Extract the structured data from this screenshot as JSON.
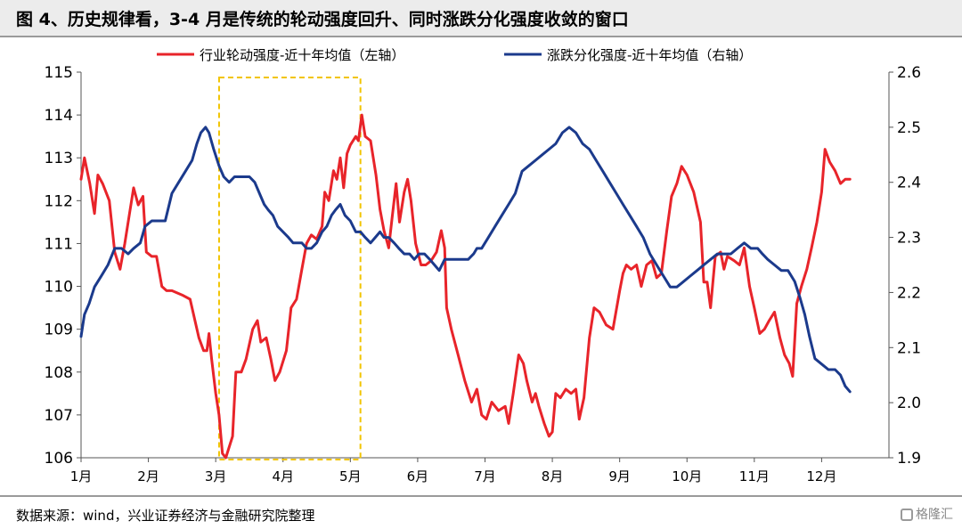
{
  "title": "图 4、历史规律看，3-4 月是传统的轮动强度回升、同时涨跌分化强度收敛的窗口",
  "source": "数据来源：wind，兴业证券经济与金融研究院整理",
  "watermark": "格隆汇",
  "colors": {
    "left_series": "#e8242a",
    "right_series": "#1b3a8c",
    "highlight": "#f2c400"
  },
  "chart_data": {
    "type": "line",
    "x_labels": [
      "1月",
      "2月",
      "3月",
      "4月",
      "5月",
      "6月",
      "7月",
      "8月",
      "9月",
      "10月",
      "11月",
      "12月"
    ],
    "y_left": {
      "min": 106,
      "max": 115,
      "ticks": [
        "106",
        "107",
        "108",
        "109",
        "110",
        "111",
        "112",
        "113",
        "114",
        "115"
      ]
    },
    "y_right": {
      "min": 1.9,
      "max": 2.6,
      "ticks": [
        "1.9",
        "2.0",
        "2.1",
        "2.2",
        "2.3",
        "2.4",
        "2.5",
        "2.6"
      ]
    },
    "highlight": {
      "from": 3.05,
      "to": 5.15
    },
    "series": [
      {
        "name": "行业轮动强度-近十年均值（左轴）",
        "axis": "left",
        "points": [
          [
            1.0,
            112.5
          ],
          [
            1.05,
            113.0
          ],
          [
            1.13,
            112.4
          ],
          [
            1.2,
            111.7
          ],
          [
            1.25,
            112.6
          ],
          [
            1.32,
            112.4
          ],
          [
            1.42,
            112.0
          ],
          [
            1.5,
            110.8
          ],
          [
            1.58,
            110.4
          ],
          [
            1.65,
            111.0
          ],
          [
            1.72,
            111.7
          ],
          [
            1.78,
            112.3
          ],
          [
            1.85,
            111.9
          ],
          [
            1.92,
            112.1
          ],
          [
            1.97,
            110.8
          ],
          [
            2.05,
            110.7
          ],
          [
            2.12,
            110.7
          ],
          [
            2.2,
            110.0
          ],
          [
            2.27,
            109.9
          ],
          [
            2.35,
            109.9
          ],
          [
            2.5,
            109.8
          ],
          [
            2.62,
            109.7
          ],
          [
            2.75,
            108.8
          ],
          [
            2.82,
            108.5
          ],
          [
            2.87,
            108.5
          ],
          [
            2.9,
            108.9
          ],
          [
            2.94,
            108.3
          ],
          [
            3.0,
            107.5
          ],
          [
            3.05,
            107.0
          ],
          [
            3.1,
            106.1
          ],
          [
            3.15,
            106.0
          ],
          [
            3.25,
            106.5
          ],
          [
            3.3,
            108.0
          ],
          [
            3.38,
            108.0
          ],
          [
            3.45,
            108.3
          ],
          [
            3.55,
            109.0
          ],
          [
            3.62,
            109.2
          ],
          [
            3.67,
            108.7
          ],
          [
            3.75,
            108.8
          ],
          [
            3.82,
            108.3
          ],
          [
            3.88,
            107.8
          ],
          [
            3.95,
            108.0
          ],
          [
            4.05,
            108.5
          ],
          [
            4.12,
            109.5
          ],
          [
            4.2,
            109.7
          ],
          [
            4.28,
            110.4
          ],
          [
            4.35,
            111.0
          ],
          [
            4.42,
            111.2
          ],
          [
            4.5,
            111.1
          ],
          [
            4.58,
            111.4
          ],
          [
            4.62,
            112.2
          ],
          [
            4.68,
            112.0
          ],
          [
            4.75,
            112.7
          ],
          [
            4.8,
            112.5
          ],
          [
            4.85,
            113.0
          ],
          [
            4.9,
            112.3
          ],
          [
            4.95,
            113.1
          ],
          [
            5.0,
            113.3
          ],
          [
            5.08,
            113.5
          ],
          [
            5.12,
            113.4
          ],
          [
            5.17,
            114.0
          ],
          [
            5.22,
            113.5
          ],
          [
            5.3,
            113.4
          ],
          [
            5.38,
            112.6
          ],
          [
            5.44,
            111.8
          ],
          [
            5.5,
            111.3
          ],
          [
            5.57,
            110.9
          ],
          [
            5.62,
            111.6
          ],
          [
            5.68,
            112.4
          ],
          [
            5.73,
            111.5
          ],
          [
            5.8,
            112.2
          ],
          [
            5.85,
            112.5
          ],
          [
            5.9,
            112.0
          ],
          [
            5.97,
            111.0
          ],
          [
            6.05,
            110.5
          ],
          [
            6.12,
            110.5
          ],
          [
            6.2,
            110.6
          ],
          [
            6.28,
            110.8
          ],
          [
            6.35,
            111.3
          ],
          [
            6.4,
            110.9
          ],
          [
            6.43,
            109.5
          ],
          [
            6.5,
            109.0
          ],
          [
            6.6,
            108.4
          ],
          [
            6.7,
            107.8
          ],
          [
            6.8,
            107.3
          ],
          [
            6.88,
            107.6
          ],
          [
            6.95,
            107.0
          ],
          [
            7.02,
            106.9
          ],
          [
            7.1,
            107.3
          ],
          [
            7.2,
            107.1
          ],
          [
            7.3,
            107.2
          ],
          [
            7.35,
            106.8
          ],
          [
            7.42,
            107.5
          ],
          [
            7.5,
            108.4
          ],
          [
            7.57,
            108.2
          ],
          [
            7.62,
            107.8
          ],
          [
            7.7,
            107.3
          ],
          [
            7.75,
            107.5
          ],
          [
            7.8,
            107.2
          ],
          [
            7.88,
            106.8
          ],
          [
            7.95,
            106.5
          ],
          [
            8.0,
            106.6
          ],
          [
            8.05,
            107.5
          ],
          [
            8.12,
            107.4
          ],
          [
            8.2,
            107.6
          ],
          [
            8.28,
            107.5
          ],
          [
            8.35,
            107.6
          ],
          [
            8.4,
            106.9
          ],
          [
            8.47,
            107.4
          ],
          [
            8.55,
            108.8
          ],
          [
            8.62,
            109.5
          ],
          [
            8.7,
            109.4
          ],
          [
            8.8,
            109.1
          ],
          [
            8.9,
            109.0
          ],
          [
            9.0,
            109.9
          ],
          [
            9.05,
            110.3
          ],
          [
            9.1,
            110.5
          ],
          [
            9.17,
            110.4
          ],
          [
            9.25,
            110.5
          ],
          [
            9.32,
            110.0
          ],
          [
            9.4,
            110.5
          ],
          [
            9.48,
            110.6
          ],
          [
            9.55,
            110.2
          ],
          [
            9.62,
            110.3
          ],
          [
            9.7,
            111.3
          ],
          [
            9.77,
            112.1
          ],
          [
            9.85,
            112.4
          ],
          [
            9.92,
            112.8
          ],
          [
            10.0,
            112.6
          ],
          [
            10.1,
            112.2
          ],
          [
            10.2,
            111.5
          ],
          [
            10.25,
            110.1
          ],
          [
            10.3,
            110.1
          ],
          [
            10.35,
            109.5
          ],
          [
            10.42,
            110.7
          ],
          [
            10.5,
            110.8
          ],
          [
            10.55,
            110.4
          ],
          [
            10.6,
            110.7
          ],
          [
            10.7,
            110.6
          ],
          [
            10.78,
            110.5
          ],
          [
            10.85,
            110.9
          ],
          [
            10.93,
            110.0
          ],
          [
            11.0,
            109.5
          ],
          [
            11.08,
            108.9
          ],
          [
            11.15,
            109.0
          ],
          [
            11.22,
            109.2
          ],
          [
            11.3,
            109.4
          ],
          [
            11.38,
            108.8
          ],
          [
            11.45,
            108.4
          ],
          [
            11.52,
            108.2
          ],
          [
            11.57,
            107.9
          ],
          [
            11.63,
            109.6
          ],
          [
            11.7,
            110.0
          ],
          [
            11.78,
            110.4
          ],
          [
            11.85,
            110.9
          ],
          [
            11.93,
            111.5
          ],
          [
            12.0,
            112.2
          ],
          [
            12.05,
            113.2
          ],
          [
            12.12,
            112.9
          ],
          [
            12.2,
            112.7
          ],
          [
            12.28,
            112.4
          ],
          [
            12.35,
            112.5
          ],
          [
            12.42,
            112.5
          ]
        ]
      },
      {
        "name": "涨跌分化强度-近十年均值（右轴）",
        "axis": "right",
        "points": [
          [
            1.0,
            2.12
          ],
          [
            1.05,
            2.16
          ],
          [
            1.12,
            2.18
          ],
          [
            1.2,
            2.21
          ],
          [
            1.3,
            2.23
          ],
          [
            1.4,
            2.25
          ],
          [
            1.5,
            2.28
          ],
          [
            1.6,
            2.28
          ],
          [
            1.7,
            2.27
          ],
          [
            1.78,
            2.28
          ],
          [
            1.88,
            2.29
          ],
          [
            1.95,
            2.32
          ],
          [
            2.05,
            2.33
          ],
          [
            2.15,
            2.33
          ],
          [
            2.25,
            2.33
          ],
          [
            2.35,
            2.38
          ],
          [
            2.45,
            2.4
          ],
          [
            2.55,
            2.42
          ],
          [
            2.65,
            2.44
          ],
          [
            2.72,
            2.47
          ],
          [
            2.78,
            2.49
          ],
          [
            2.85,
            2.5
          ],
          [
            2.9,
            2.49
          ],
          [
            2.97,
            2.46
          ],
          [
            3.05,
            2.43
          ],
          [
            3.12,
            2.41
          ],
          [
            3.2,
            2.4
          ],
          [
            3.28,
            2.41
          ],
          [
            3.35,
            2.41
          ],
          [
            3.42,
            2.41
          ],
          [
            3.5,
            2.41
          ],
          [
            3.58,
            2.4
          ],
          [
            3.65,
            2.38
          ],
          [
            3.72,
            2.36
          ],
          [
            3.78,
            2.35
          ],
          [
            3.85,
            2.34
          ],
          [
            3.92,
            2.32
          ],
          [
            4.0,
            2.31
          ],
          [
            4.08,
            2.3
          ],
          [
            4.15,
            2.29
          ],
          [
            4.22,
            2.29
          ],
          [
            4.28,
            2.29
          ],
          [
            4.35,
            2.28
          ],
          [
            4.42,
            2.28
          ],
          [
            4.5,
            2.29
          ],
          [
            4.58,
            2.31
          ],
          [
            4.65,
            2.32
          ],
          [
            4.72,
            2.34
          ],
          [
            4.78,
            2.35
          ],
          [
            4.85,
            2.36
          ],
          [
            4.92,
            2.34
          ],
          [
            5.0,
            2.33
          ],
          [
            5.08,
            2.31
          ],
          [
            5.15,
            2.31
          ],
          [
            5.22,
            2.3
          ],
          [
            5.3,
            2.29
          ],
          [
            5.37,
            2.3
          ],
          [
            5.44,
            2.31
          ],
          [
            5.5,
            2.3
          ],
          [
            5.57,
            2.3
          ],
          [
            5.65,
            2.29
          ],
          [
            5.72,
            2.28
          ],
          [
            5.8,
            2.27
          ],
          [
            5.88,
            2.27
          ],
          [
            5.95,
            2.26
          ],
          [
            6.02,
            2.27
          ],
          [
            6.1,
            2.27
          ],
          [
            6.18,
            2.26
          ],
          [
            6.25,
            2.25
          ],
          [
            6.32,
            2.24
          ],
          [
            6.4,
            2.26
          ],
          [
            6.48,
            2.26
          ],
          [
            6.56,
            2.26
          ],
          [
            6.65,
            2.26
          ],
          [
            6.75,
            2.26
          ],
          [
            6.83,
            2.27
          ],
          [
            6.88,
            2.28
          ],
          [
            6.95,
            2.28
          ],
          [
            7.05,
            2.3
          ],
          [
            7.15,
            2.32
          ],
          [
            7.25,
            2.34
          ],
          [
            7.35,
            2.36
          ],
          [
            7.45,
            2.38
          ],
          [
            7.55,
            2.42
          ],
          [
            7.65,
            2.43
          ],
          [
            7.75,
            2.44
          ],
          [
            7.85,
            2.45
          ],
          [
            7.95,
            2.46
          ],
          [
            8.05,
            2.47
          ],
          [
            8.15,
            2.49
          ],
          [
            8.25,
            2.5
          ],
          [
            8.35,
            2.49
          ],
          [
            8.45,
            2.47
          ],
          [
            8.55,
            2.46
          ],
          [
            8.65,
            2.44
          ],
          [
            8.75,
            2.42
          ],
          [
            8.85,
            2.4
          ],
          [
            8.95,
            2.38
          ],
          [
            9.05,
            2.36
          ],
          [
            9.15,
            2.34
          ],
          [
            9.25,
            2.32
          ],
          [
            9.35,
            2.3
          ],
          [
            9.45,
            2.27
          ],
          [
            9.55,
            2.25
          ],
          [
            9.65,
            2.23
          ],
          [
            9.75,
            2.21
          ],
          [
            9.85,
            2.21
          ],
          [
            9.95,
            2.22
          ],
          [
            10.05,
            2.23
          ],
          [
            10.15,
            2.24
          ],
          [
            10.25,
            2.25
          ],
          [
            10.35,
            2.26
          ],
          [
            10.45,
            2.27
          ],
          [
            10.55,
            2.27
          ],
          [
            10.65,
            2.27
          ],
          [
            10.75,
            2.28
          ],
          [
            10.85,
            2.29
          ],
          [
            10.95,
            2.28
          ],
          [
            11.05,
            2.28
          ],
          [
            11.12,
            2.27
          ],
          [
            11.2,
            2.26
          ],
          [
            11.3,
            2.25
          ],
          [
            11.4,
            2.24
          ],
          [
            11.5,
            2.24
          ],
          [
            11.6,
            2.22
          ],
          [
            11.68,
            2.19
          ],
          [
            11.75,
            2.16
          ],
          [
            11.82,
            2.12
          ],
          [
            11.9,
            2.08
          ],
          [
            12.0,
            2.07
          ],
          [
            12.1,
            2.06
          ],
          [
            12.2,
            2.06
          ],
          [
            12.28,
            2.05
          ],
          [
            12.35,
            2.03
          ],
          [
            12.42,
            2.02
          ]
        ]
      }
    ]
  }
}
